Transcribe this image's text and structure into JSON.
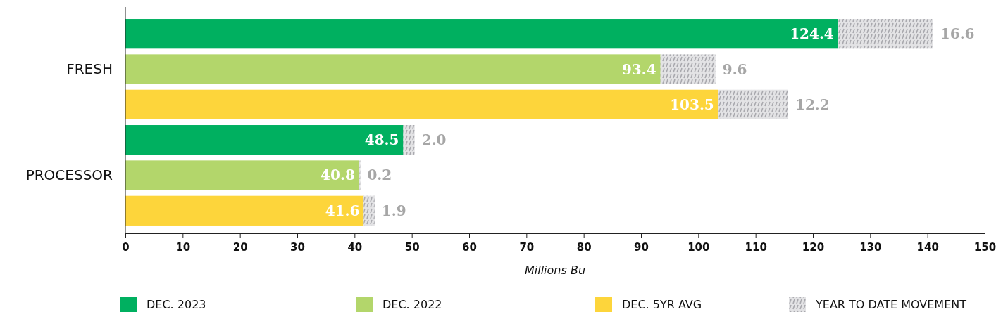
{
  "chart_data": {
    "type": "bar",
    "orientation": "horizontal",
    "stacked": true,
    "xlabel": "Millions Bu",
    "categories": [
      null,
      "FRESH",
      null,
      null,
      "PROCESSOR",
      null
    ],
    "series": [
      {
        "name": "DEC. 2023",
        "color": "#00b060",
        "values": [
          124.4,
          null,
          null,
          48.5,
          null,
          null
        ],
        "value_labels": [
          "124.4",
          null,
          null,
          "48.5",
          null,
          null
        ]
      },
      {
        "name": "DEC. 2022",
        "color": "#b3d66b",
        "values": [
          null,
          93.4,
          null,
          null,
          40.8,
          null
        ],
        "value_labels": [
          null,
          "93.4",
          null,
          null,
          "40.8",
          null
        ]
      },
      {
        "name": "DEC. 5YR AVG",
        "color": "#fdd53b",
        "values": [
          null,
          null,
          103.5,
          null,
          null,
          41.6
        ],
        "value_labels": [
          null,
          null,
          "103.5",
          null,
          null,
          "41.6"
        ]
      },
      {
        "name": "YEAR TO DATE MOVEMENT",
        "color": "#e3e3e5",
        "values": [
          16.6,
          9.6,
          12.2,
          2.0,
          0.2,
          1.9
        ],
        "value_labels": [
          "16.6",
          "9.6",
          "12.2",
          "2.0",
          "0.2",
          "1.9"
        ]
      }
    ],
    "xlim": [
      0,
      150
    ],
    "xticks": [
      0,
      10,
      20,
      30,
      40,
      50,
      60,
      70,
      80,
      90,
      100,
      110,
      120,
      130,
      140,
      150
    ],
    "legend": "bottom",
    "grid": false
  }
}
